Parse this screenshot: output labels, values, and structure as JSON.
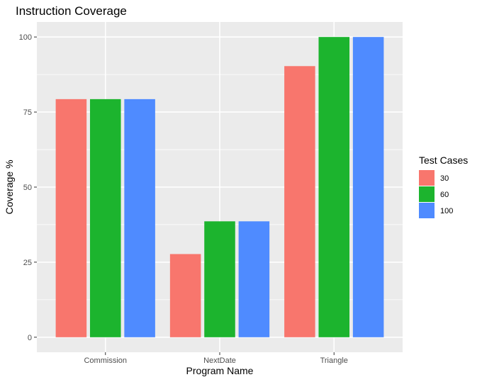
{
  "chart_data": {
    "type": "bar",
    "title": "Instruction Coverage",
    "xlabel": "Program Name",
    "ylabel": "Coverage %",
    "categories": [
      "Commission",
      "NextDate",
      "Triangle"
    ],
    "series": [
      {
        "name": "30",
        "values": [
          79.3,
          27.7,
          90.3
        ],
        "color": "#F8766D"
      },
      {
        "name": "60",
        "values": [
          79.3,
          38.6,
          100
        ],
        "color": "#1CB42E"
      },
      {
        "name": "100",
        "values": [
          79.3,
          38.6,
          100
        ],
        "color": "#4F8BFF"
      }
    ],
    "ylim": [
      -5,
      105
    ],
    "yticks": [
      0,
      25,
      50,
      75,
      100
    ],
    "legend": {
      "title": "Test Cases",
      "position": "right"
    },
    "grid": true,
    "panel_background": "#EBEBEB",
    "grid_color": "#FFFFFF"
  }
}
